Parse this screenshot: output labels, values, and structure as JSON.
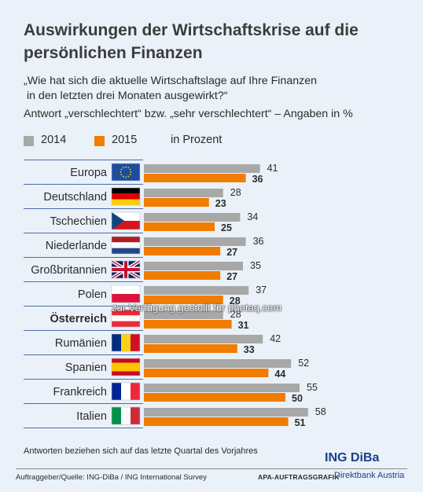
{
  "header": {
    "title": "Auswirkungen der Wirtschaftskrise auf die persönlichen Finanzen",
    "subtitle": "„Wie hat sich die aktuelle Wirtschaftslage auf Ihre Finanzen\n in den letzten drei Monaten ausgewirkt?“",
    "note": "Antwort „verschlechtert“ bzw. „sehr verschlechtert“ – Angaben in %"
  },
  "legend": {
    "series_2014": "2014",
    "series_2015": "2015",
    "unit": "in Prozent"
  },
  "colors": {
    "grey": "#a8a8a8",
    "orange": "#f07d00",
    "navy": "#1c3f8a"
  },
  "chart_data": {
    "type": "bar",
    "orientation": "horizontal",
    "categories": [
      "Europa",
      "Deutschland",
      "Tschechien",
      "Niederlande",
      "Großbritannien",
      "Polen",
      "Österreich",
      "Rumänien",
      "Spanien",
      "Frankreich",
      "Italien"
    ],
    "highlight_category": "Österreich",
    "series": [
      {
        "name": "2014",
        "values": [
          41,
          28,
          34,
          36,
          35,
          37,
          28,
          42,
          52,
          55,
          58
        ]
      },
      {
        "name": "2015",
        "values": [
          36,
          23,
          25,
          27,
          27,
          28,
          31,
          33,
          44,
          50,
          51
        ]
      }
    ],
    "flags": [
      "eu-flag-icon",
      "germany-flag-icon",
      "czech-flag-icon",
      "netherlands-flag-icon",
      "uk-flag-icon",
      "poland-flag-icon",
      "austria-flag-icon",
      "romania-flag-icon",
      "spain-flag-icon",
      "france-flag-icon",
      "italy-flag-icon"
    ]
  },
  "footer": {
    "footnote": "Antworten beziehen sich auf das letzte Quartal des Vorjahres",
    "source": "Auftraggeber/Quelle: ING-DiBa / ING International Survey",
    "agency": "APA-AUFTRAGSGRAFIK",
    "brand": "ING DiBa",
    "brand_sub": "Direktbank Austria"
  },
  "watermark": "zur Verfügung gestellt für photaq.com"
}
